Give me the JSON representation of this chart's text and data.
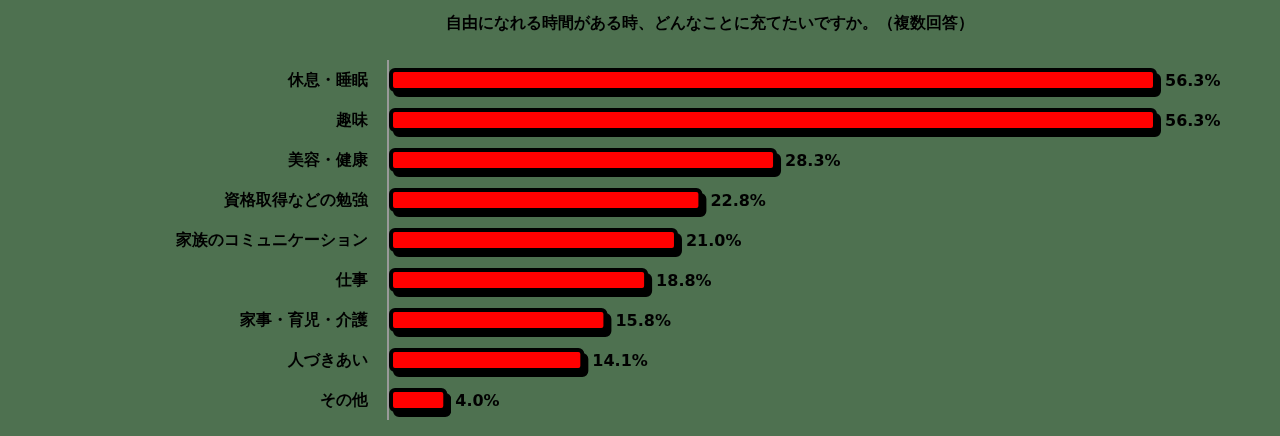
{
  "chart_data": {
    "type": "bar",
    "orientation": "horizontal",
    "title": "自由になれる時間がある時、どんなことに充てたいですか。（複数回答）",
    "categories": [
      "休息・睡眠",
      "趣味",
      "美容・健康",
      "資格取得などの勉強",
      "家族のコミュニケーション",
      "仕事",
      "家事・育児・介護",
      "人づきあい",
      "その他"
    ],
    "values": [
      56.3,
      56.3,
      28.3,
      22.8,
      21.0,
      18.8,
      15.8,
      14.1,
      4.0
    ],
    "value_labels": [
      "56.3%",
      "56.3%",
      "28.3%",
      "22.8%",
      "21.0%",
      "18.8%",
      "15.8%",
      "14.1%",
      "4.0%"
    ],
    "color": "#ff0000"
  }
}
